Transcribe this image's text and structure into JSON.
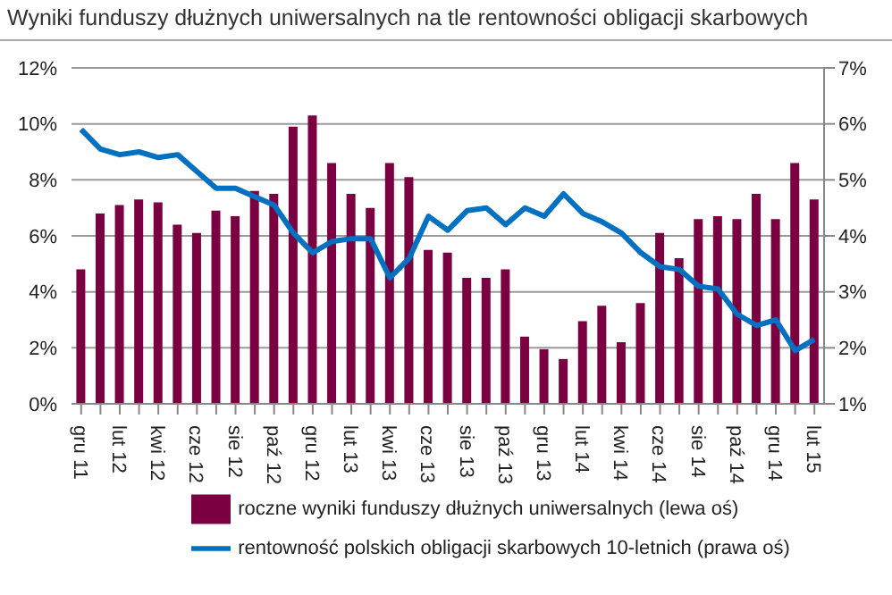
{
  "chart_data": {
    "type": "bar",
    "title": "Wyniki funduszy dłużnych uniwersalnych na tle rentowności obligacji skarbowych",
    "categories": [
      "gru 11",
      null,
      "lut 12",
      null,
      "kwi 12",
      null,
      "cze 12",
      null,
      "sie 12",
      null,
      "paź 12",
      null,
      "gru 12",
      null,
      "lut 13",
      null,
      "kwi 13",
      null,
      "cze 13",
      null,
      "sie 13",
      null,
      "paź 13",
      null,
      "gru 13",
      null,
      "lut 14",
      null,
      "kwi 14",
      null,
      "cze 14",
      null,
      "sie 14",
      null,
      "paź 14",
      null,
      "gru 14",
      null,
      "lut 15"
    ],
    "series": [
      {
        "name": "roczne wyniki funduszy dłużnych uniwersalnych (lewa oś)",
        "color": "#7b0041",
        "values": [
          4.8,
          6.8,
          7.1,
          7.3,
          7.2,
          6.4,
          6.1,
          6.9,
          6.7,
          7.6,
          7.5,
          9.9,
          10.3,
          8.6,
          7.5,
          7.0,
          8.6,
          8.1,
          5.5,
          5.4,
          4.5,
          4.5,
          4.8,
          2.4,
          1.95,
          1.6,
          2.95,
          3.5,
          2.2,
          3.6,
          6.1,
          5.2,
          6.6,
          6.7,
          6.6,
          7.5,
          6.6,
          8.6,
          7.3
        ]
      },
      {
        "name": "rentowność polskich obligacji skarbowych 10-letnich (prawa oś)",
        "type": "line",
        "axis": "y2",
        "color": "#0070c0",
        "values": [
          5.9,
          5.55,
          5.45,
          5.5,
          5.4,
          5.45,
          5.15,
          4.85,
          4.85,
          4.7,
          4.55,
          4.05,
          3.7,
          3.9,
          3.95,
          3.95,
          3.25,
          3.6,
          4.35,
          4.1,
          4.45,
          4.5,
          4.2,
          4.5,
          4.35,
          4.75,
          4.4,
          4.25,
          4.05,
          3.7,
          3.45,
          3.4,
          3.1,
          3.05,
          2.6,
          2.4,
          2.5,
          1.95,
          2.15
        ]
      }
    ],
    "ylim": [
      0,
      12
    ],
    "yticks": [
      {
        "value": 0,
        "label": "0%"
      },
      {
        "value": 2,
        "label": "2%"
      },
      {
        "value": 4,
        "label": "4%"
      },
      {
        "value": 6,
        "label": "6%"
      },
      {
        "value": 8,
        "label": "8%"
      },
      {
        "value": 10,
        "label": "10%"
      },
      {
        "value": 12,
        "label": "12%"
      }
    ],
    "y2lim": [
      1,
      7
    ],
    "y2ticks": [
      {
        "value": 1,
        "label": "1%"
      },
      {
        "value": 2,
        "label": "2%"
      },
      {
        "value": 3,
        "label": "3%"
      },
      {
        "value": 4,
        "label": "4%"
      },
      {
        "value": 5,
        "label": "5%"
      },
      {
        "value": 6,
        "label": "6%"
      },
      {
        "value": 7,
        "label": "7%"
      }
    ],
    "grid": "y",
    "legend": "bottom",
    "marker": "none",
    "line_style": "solid"
  }
}
